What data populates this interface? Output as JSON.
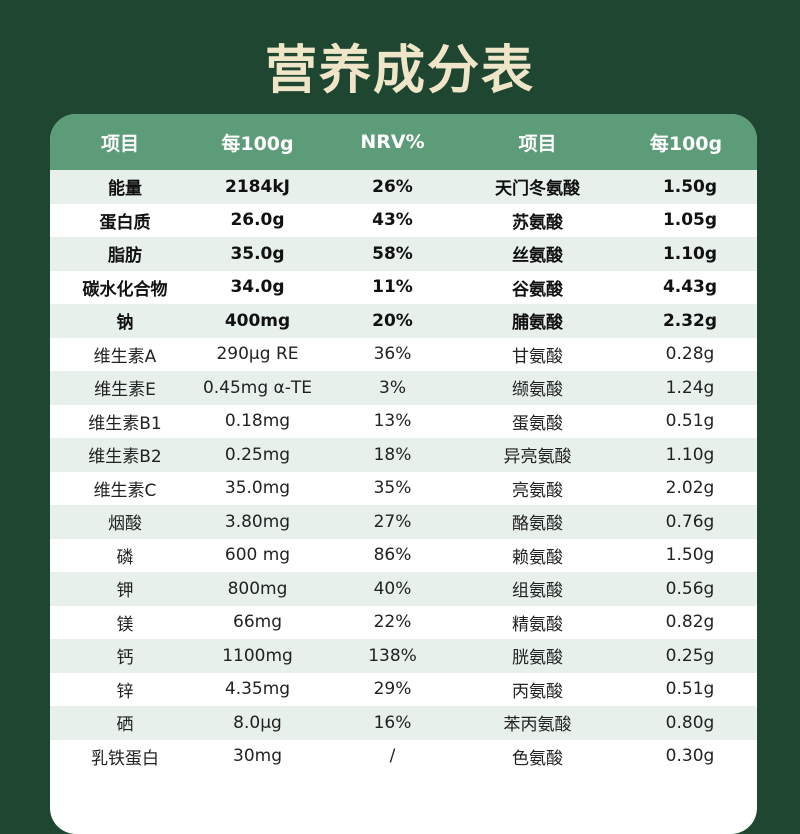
{
  "title": "营养成分表",
  "header": {
    "col1": "项目",
    "col2": "每100g",
    "col3": "NRV%",
    "col4": "项目",
    "col5": "每100g"
  },
  "rows": [
    {
      "name": "能量",
      "amount": "2184kJ",
      "nrv": "26%",
      "amino": "天门冬氨酸",
      "amino_amount": "1.50g"
    },
    {
      "name": "蛋白质",
      "amount": "26.0g",
      "nrv": "43%",
      "amino": "苏氨酸",
      "amino_amount": "1.05g"
    },
    {
      "name": "脂肪",
      "amount": "35.0g",
      "nrv": "58%",
      "amino": "丝氨酸",
      "amino_amount": "1.10g"
    },
    {
      "name": "碳水化合物",
      "amount": "34.0g",
      "nrv": "11%",
      "amino": "谷氨酸",
      "amino_amount": "4.43g"
    },
    {
      "name": "钠",
      "amount": "400mg",
      "nrv": "20%",
      "amino": "脯氨酸",
      "amino_amount": "2.32g"
    },
    {
      "name": "维生素A",
      "amount": "290μg RE",
      "nrv": "36%",
      "amino": "甘氨酸",
      "amino_amount": "0.28g"
    },
    {
      "name": "维生素E",
      "amount": "0.45mg α-TE",
      "nrv": "3%",
      "amino": "缬氨酸",
      "amino_amount": "1.24g"
    },
    {
      "name": "维生素B1",
      "amount": "0.18mg",
      "nrv": "13%",
      "amino": "蛋氨酸",
      "amino_amount": "0.51g"
    },
    {
      "name": "维生素B2",
      "amount": "0.25mg",
      "nrv": "18%",
      "amino": "异亮氨酸",
      "amino_amount": "1.10g"
    },
    {
      "name": "维生素C",
      "amount": "35.0mg",
      "nrv": "35%",
      "amino": "亮氨酸",
      "amino_amount": "2.02g"
    },
    {
      "name": "烟酸",
      "amount": "3.80mg",
      "nrv": "27%",
      "amino": "酪氨酸",
      "amino_amount": "0.76g"
    },
    {
      "name": "磷",
      "amount": "600 mg",
      "nrv": "86%",
      "amino": "赖氨酸",
      "amino_amount": "1.50g"
    },
    {
      "name": "钾",
      "amount": "800mg",
      "nrv": "40%",
      "amino": "组氨酸",
      "amino_amount": "0.56g"
    },
    {
      "name": "镁",
      "amount": "66mg",
      "nrv": "22%",
      "amino": "精氨酸",
      "amino_amount": "0.82g"
    },
    {
      "name": "钙",
      "amount": "1100mg",
      "nrv": "138%",
      "amino": "胱氨酸",
      "amino_amount": "0.25g"
    },
    {
      "name": "锌",
      "amount": "4.35mg",
      "nrv": "29%",
      "amino": "丙氨酸",
      "amino_amount": "0.51g"
    },
    {
      "name": "硒",
      "amount": "8.0μg",
      "nrv": "16%",
      "amino": "苯丙氨酸",
      "amino_amount": "0.80g"
    },
    {
      "name": "乳铁蛋白",
      "amount": "30mg",
      "nrv": "/",
      "amino": "色氨酸",
      "amino_amount": "0.30g"
    }
  ],
  "colors": {
    "background": "#1f4630",
    "title": "#efe6c9",
    "header": "#5d9c78",
    "row_alt": "#e7f0ea"
  }
}
